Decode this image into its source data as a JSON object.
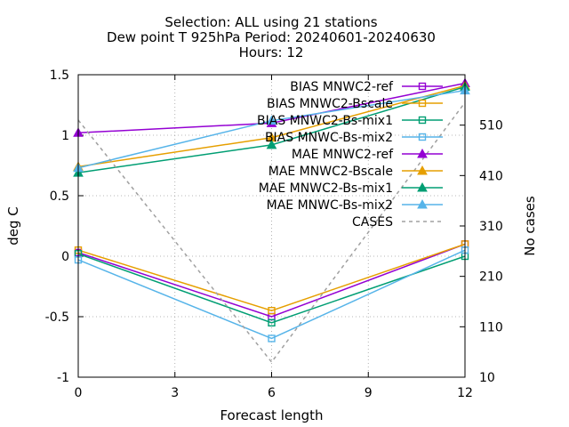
{
  "chart_data": {
    "type": "line",
    "title_lines": [
      "Selection: ALL using    21 stations",
      "Dew point T 925hPa   Period: 20240601-20240630",
      "Hours: 12"
    ],
    "xlabel": "Forecast length",
    "ylabel": "deg C",
    "y2label": "No cases",
    "xlim": [
      0,
      12
    ],
    "ylim": [
      -1,
      1.5
    ],
    "y2lim": [
      10,
      610
    ],
    "xticks": [
      0,
      3,
      6,
      9,
      12
    ],
    "yticks": [
      -1,
      -0.5,
      0,
      0.5,
      1,
      1.5
    ],
    "y2ticks": [
      10,
      110,
      210,
      310,
      410,
      510
    ],
    "grid": true,
    "legend_position": "top-right",
    "x": [
      0,
      6,
      12
    ],
    "series": [
      {
        "name": "BIAS MNWC2-ref",
        "axis": "y",
        "marker": "square",
        "color": "#9400d3",
        "values": [
          0.03,
          -0.5,
          0.1
        ]
      },
      {
        "name": "BIAS MNWC2-Bscale",
        "axis": "y",
        "marker": "square",
        "color": "#e69f00",
        "values": [
          0.05,
          -0.45,
          0.1
        ]
      },
      {
        "name": "BIAS MNWC2-Bs-mix1",
        "axis": "y",
        "marker": "square",
        "color": "#009e73",
        "values": [
          0.02,
          -0.55,
          0.0
        ]
      },
      {
        "name": "BIAS MNWC-Bs-mix2",
        "axis": "y",
        "marker": "square",
        "color": "#56b4e9",
        "values": [
          -0.03,
          -0.68,
          0.05
        ]
      },
      {
        "name": "MAE MNWC2-ref",
        "axis": "y",
        "marker": "triangle",
        "color": "#9400d3",
        "values": [
          1.02,
          1.1,
          1.43
        ]
      },
      {
        "name": "MAE MNWC2-Bscale",
        "axis": "y",
        "marker": "triangle",
        "color": "#e69f00",
        "values": [
          0.74,
          0.98,
          1.41
        ]
      },
      {
        "name": "MAE MNWC2-Bs-mix1",
        "axis": "y",
        "marker": "triangle",
        "color": "#009e73",
        "values": [
          0.69,
          0.92,
          1.4
        ]
      },
      {
        "name": "MAE MNWC-Bs-mix2",
        "axis": "y",
        "marker": "triangle",
        "color": "#56b4e9",
        "values": [
          0.73,
          1.12,
          1.37
        ]
      },
      {
        "name": "CASES",
        "axis": "y2",
        "marker": "none",
        "dash": true,
        "color": "#a0a0a0",
        "values": [
          520,
          40,
          555
        ]
      }
    ]
  }
}
